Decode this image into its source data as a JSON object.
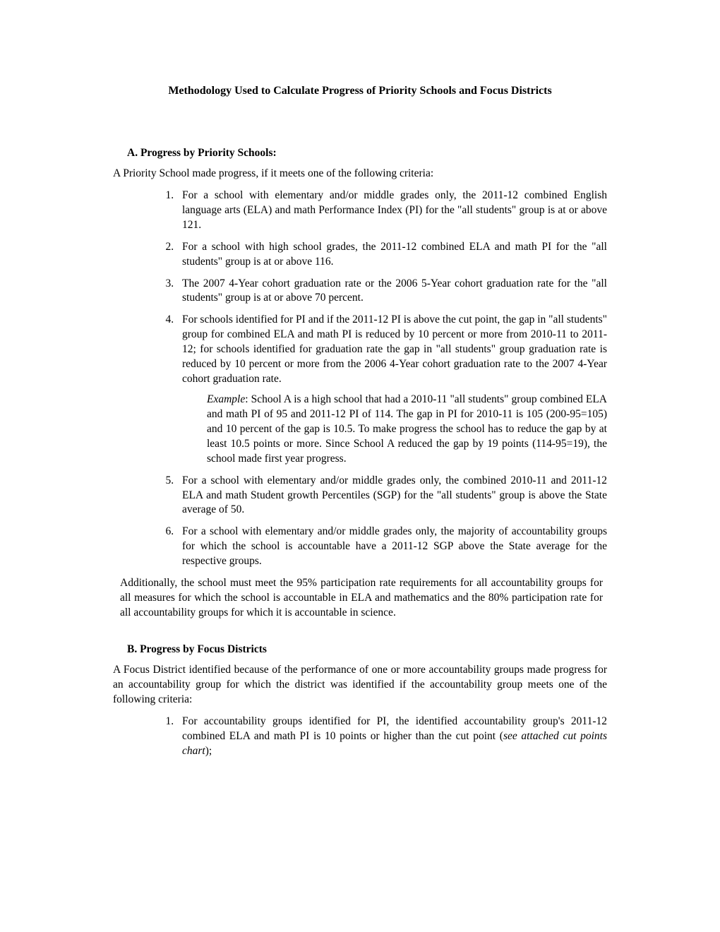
{
  "title": "Methodology Used to Calculate Progress of Priority Schools and Focus Districts",
  "sectionA": {
    "heading": "A.  Progress by Priority Schools:",
    "intro": "A Priority School made progress, if it meets one of the following criteria:",
    "items": [
      "For a school with elementary and/or middle grades only, the 2011-12 combined English language arts (ELA) and math Performance Index (PI) for the \"all students\" group is at or above 121.",
      "For a school with high school grades, the 2011-12 combined ELA and math PI for the \"all students\" group is at or above 116.",
      "The 2007 4-Year cohort graduation rate or the 2006 5-Year cohort graduation rate for the \"all students\" group is at or above 70 percent.",
      "For schools identified for PI and if the 2011-12 PI is above the cut point, the gap in \"all students\" group for combined ELA and math PI is reduced by 10 percent or more from 2010-11 to 2011-12; for schools identified for graduation rate the gap in \"all students\" group  graduation rate is reduced by 10 percent or more from the 2006 4-Year cohort graduation rate to the 2007 4-Year cohort graduation rate.",
      "For a school with elementary and/or middle grades only, the combined 2010-11 and 2011-12 ELA and math Student growth Percentiles (SGP) for the \"all students\" group is above the State average of 50.",
      "For a school with elementary and/or middle grades only, the majority of accountability groups for which the school is accountable have a 2011-12 SGP above the State average for the respective groups."
    ],
    "exampleLabel": "Example",
    "exampleText": ": School A is a high school that had a 2010-11 \"all students\" group combined ELA and math PI of 95 and 2011-12 PI of 114. The gap in PI for 2010-11 is 105 (200-95=105) and 10 percent of the gap is 10.5. To make progress the school has to reduce the gap by at least 10.5 points or more. Since School A reduced the gap by 19 points (114-95=19), the school made first year progress.",
    "additional": "Additionally, the school must meet the 95% participation rate requirements for all accountability groups for all measures for which the school is accountable in ELA and mathematics and the 80% participation rate for all accountability groups for which it is accountable in science."
  },
  "sectionB": {
    "heading": "B.   Progress by Focus Districts",
    "intro": "A Focus District identified because of the performance of one or more accountability groups made progress for an accountability group for which the district was identified if the accountability group meets one of the following criteria:",
    "item1_pre": "For  accountability groups identified for PI, the identified  accountability group's 2011-12 combined ELA and math PI is 10 points or higher than the cut point (",
    "item1_em": "see attached cut points chart",
    "item1_post": ");"
  }
}
